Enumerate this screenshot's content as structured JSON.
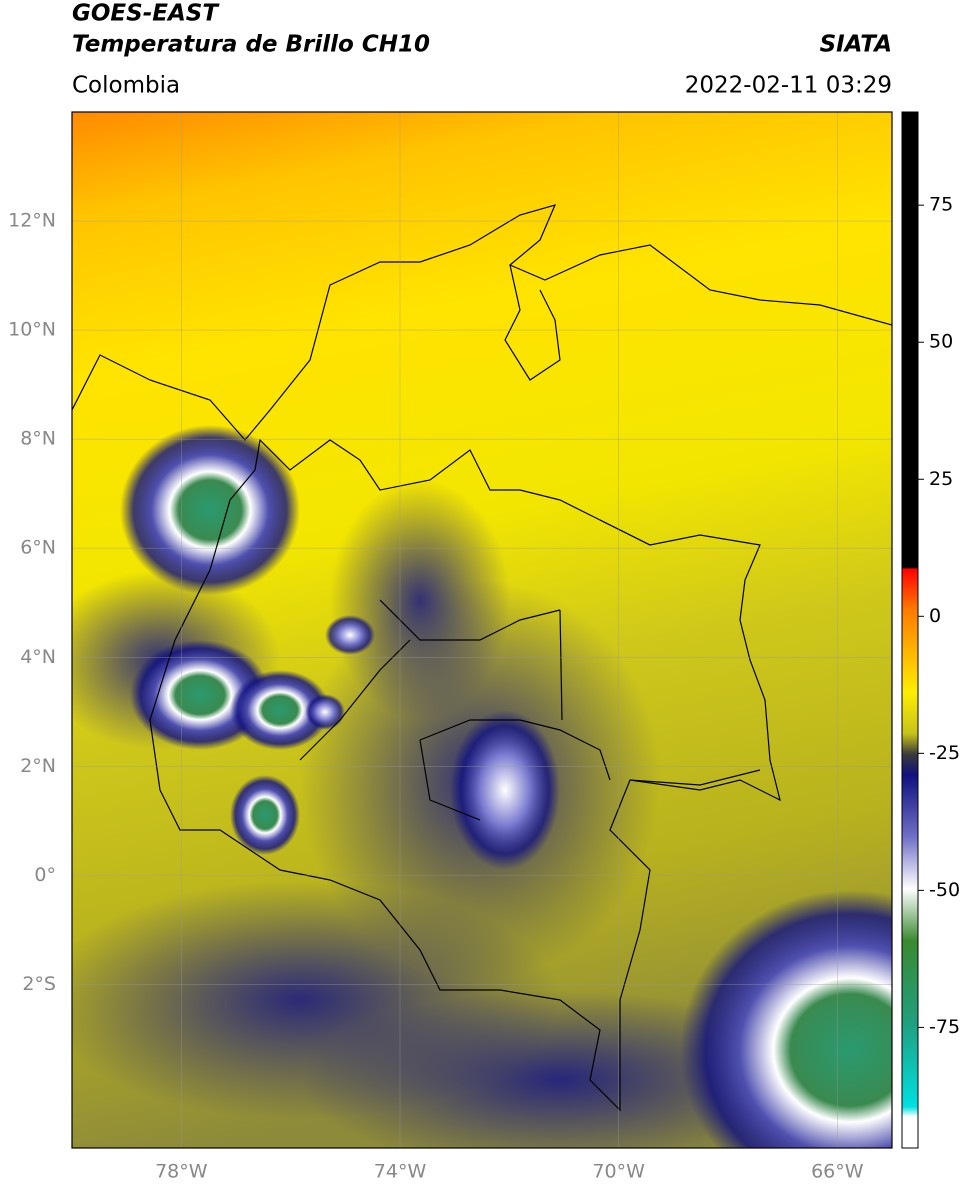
{
  "header": {
    "title": "GOES-EAST",
    "subtitle": "Temperatura de Brillo CH10",
    "region": "Colombia",
    "source": "SIATA",
    "timestamp": "2022-02-11 03:29"
  },
  "map": {
    "lonlim": [
      -80,
      -65
    ],
    "latlim": [
      -5,
      14
    ],
    "lon_ticks": [
      {
        "value": -78,
        "label": "78°W"
      },
      {
        "value": -74,
        "label": "74°W"
      },
      {
        "value": -70,
        "label": "70°W"
      },
      {
        "value": -66,
        "label": "66°W"
      }
    ],
    "lat_ticks": [
      {
        "value": 12,
        "label": "12°N"
      },
      {
        "value": 10,
        "label": "10°N"
      },
      {
        "value": 8,
        "label": "8°N"
      },
      {
        "value": 6,
        "label": "6°N"
      },
      {
        "value": 4,
        "label": "4°N"
      },
      {
        "value": 2,
        "label": "2°N"
      },
      {
        "value": 0,
        "label": "0°"
      },
      {
        "value": -2,
        "label": "2°S"
      }
    ],
    "grid": true
  },
  "colorbar": {
    "lim": [
      -97,
      92
    ],
    "ticks": [
      75,
      50,
      25,
      0,
      -25,
      -50,
      -75
    ]
  }
}
